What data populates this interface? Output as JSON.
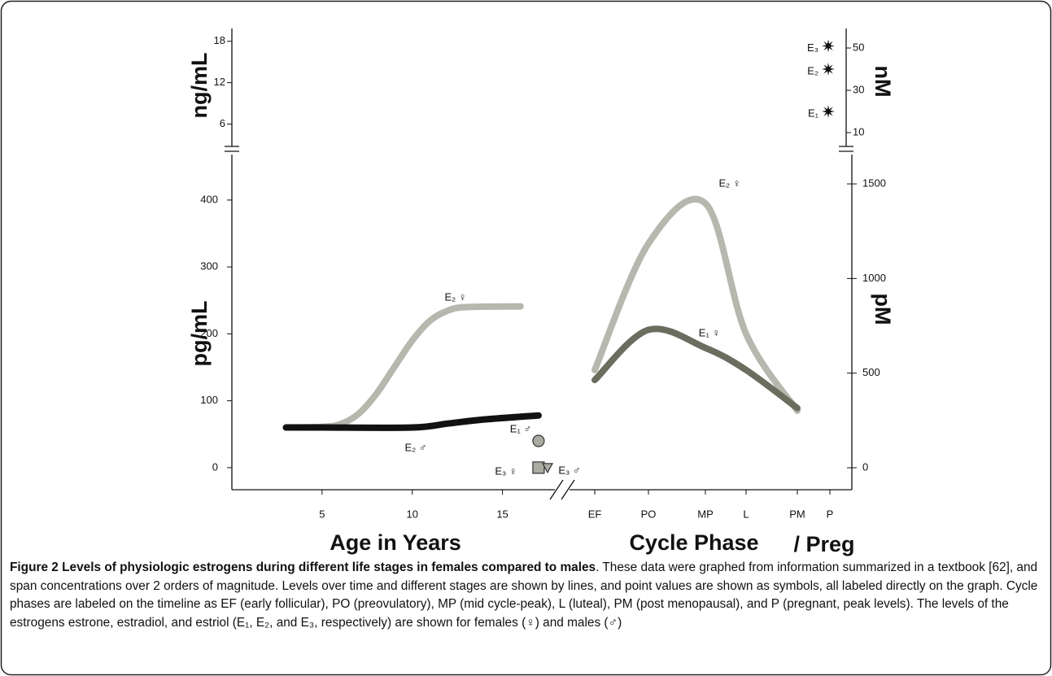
{
  "chart_data": [
    {
      "type": "line",
      "ylabel": "pg/mL",
      "xlabel": "Age in Years",
      "xlim": [
        0,
        17.5
      ],
      "xticks": [
        5,
        10,
        15
      ],
      "ylim": [
        -33,
        468
      ],
      "yticks": [
        0,
        100,
        200,
        300,
        400
      ],
      "series": [
        {
          "name": "E₂ ♀",
          "color": "#b5b8ac",
          "x": [
            3,
            5,
            6,
            7,
            8,
            9,
            10,
            11,
            12,
            13,
            16
          ],
          "values": [
            60,
            61,
            65,
            80,
            110,
            150,
            190,
            220,
            235,
            240,
            241
          ]
        },
        {
          "name": "E₂ ♂",
          "color": "#111111",
          "x": [
            3,
            5,
            10,
            12,
            14,
            17
          ],
          "values": [
            60,
            60,
            60,
            66,
            72,
            78
          ]
        }
      ],
      "points": [
        {
          "name": "E₁ ♂",
          "marker": "circle",
          "color": "#a9aca0",
          "x": 17,
          "value": 40
        },
        {
          "name": "E₃ ♀",
          "marker": "square",
          "color": "#a9aca0",
          "x": 17,
          "value": 0
        },
        {
          "name": "E₃ ♂",
          "marker": "triangle",
          "color": "#a9aca0",
          "x": 17.5,
          "value": 0
        }
      ]
    },
    {
      "type": "line",
      "xlabel": "Cycle Phase",
      "xlabel_suffix": "/ Preg",
      "categories": [
        "EF",
        "PO",
        "MP",
        "L",
        "PM",
        "P"
      ],
      "y2label": "pM",
      "y2lim": [
        -116,
        1655
      ],
      "y2ticks": [
        0,
        500,
        1000,
        1500
      ],
      "series": [
        {
          "name": "E₂ ♀",
          "color": "#b5b8ac",
          "values": [
            146,
            335,
            395,
            200,
            85,
            null
          ]
        },
        {
          "name": "E₁ ♀",
          "color": "#6b6d5f",
          "values": [
            131,
            206,
            179,
            146,
            89,
            null
          ]
        }
      ]
    },
    {
      "type": "scatter",
      "ylabel": "ng/mL",
      "ylim": [
        3,
        19.5
      ],
      "yticks": [
        6,
        12,
        18
      ],
      "y2label": "nM",
      "y2lim": [
        5,
        60
      ],
      "y2ticks": [
        10,
        30,
        50
      ],
      "marker": "star",
      "axis": "y2",
      "points": [
        {
          "name": "E₃",
          "value": 51
        },
        {
          "name": "E₂",
          "value": 40
        },
        {
          "name": "E₁",
          "value": 20
        }
      ]
    }
  ],
  "caption": {
    "label": "Figure 2 Levels of physiologic estrogens during different life stages in females compared to males",
    "text": ". These data were graphed from information summarized in a textbook [62], and span concentrations over 2 orders of magnitude. Levels over time and different stages are shown by lines, and point values are shown as symbols, all labeled directly on the graph. Cycle phases are labeled on the timeline as EF (early follicular), PO (preovulatory), MP (mid cycle-peak), L (luteal), PM (post menopausal), and P (pregnant, peak levels). The levels of the estrogens estrone, estradiol, and estriol (E₁, E₂, and E₃, respectively) are shown for females (♀) and males (♂)"
  }
}
